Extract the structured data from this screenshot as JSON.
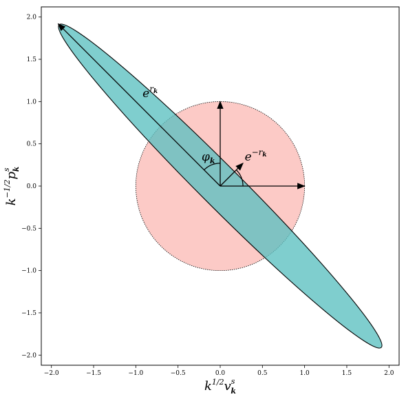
{
  "chart_data": {
    "type": "scatter",
    "title": "",
    "xlabel": "k^{1/2} v^s_k",
    "ylabel": "k^{-1/2} p^s_k",
    "xlim": [
      -2.12,
      2.12
    ],
    "ylim": [
      -2.12,
      2.12
    ],
    "x_ticks": [
      -2.0,
      -1.5,
      -1.0,
      -0.5,
      0.0,
      0.5,
      1.0,
      1.5,
      2.0
    ],
    "y_ticks": [
      -2.0,
      -1.5,
      -1.0,
      -0.5,
      0.0,
      0.5,
      1.0,
      1.5,
      2.0
    ],
    "x_tick_labels": [
      "−2.0",
      "−1.5",
      "−1.0",
      "−0.5",
      "0.0",
      "0.5",
      "1.0",
      "1.5",
      "2.0"
    ],
    "y_tick_labels": [
      "−2.0",
      "−1.5",
      "−1.0",
      "−0.5",
      "0.0",
      "0.5",
      "1.0",
      "1.5",
      "2.0"
    ],
    "grid": false,
    "shapes": {
      "circle": {
        "center": [
          0,
          0
        ],
        "radius": 1.0,
        "fill": "#fccac6",
        "edge": "#000000",
        "linestyle": "dotted"
      },
      "ellipse": {
        "center": [
          0,
          0
        ],
        "major_endpoint": [
          -1.91,
          1.91
        ],
        "semi_major": 2.7,
        "semi_minor": 0.24,
        "angle_deg": 135,
        "fill": "#5bc0c0",
        "edge": "#000000"
      }
    },
    "arrows": [
      {
        "from": [
          0,
          0
        ],
        "to": [
          1.0,
          0.0
        ]
      },
      {
        "from": [
          0,
          0
        ],
        "to": [
          0.0,
          1.0
        ]
      },
      {
        "from": [
          0,
          0
        ],
        "to": [
          -1.92,
          1.92
        ]
      },
      {
        "from": [
          0,
          0
        ],
        "to": [
          0.27,
          0.27
        ]
      }
    ],
    "arcs": [
      {
        "center": [
          0,
          0
        ],
        "radius": 0.27,
        "from_angle_deg": 0,
        "to_angle_deg": 45
      },
      {
        "center": [
          0,
          0
        ],
        "radius": 0.27,
        "from_angle_deg": 90,
        "to_angle_deg": 135
      }
    ],
    "annotations": [
      {
        "text_base": "e",
        "text_sup": "r",
        "text_sup_sub": "k",
        "at": [
          -0.92,
          1.05
        ]
      },
      {
        "text_base": "φ",
        "text_sub": "k",
        "at": [
          -0.22,
          0.3
        ]
      },
      {
        "text_base": "e",
        "text_sup": "−r",
        "text_sup_sub": "k",
        "at": [
          0.29,
          0.3
        ]
      }
    ]
  }
}
